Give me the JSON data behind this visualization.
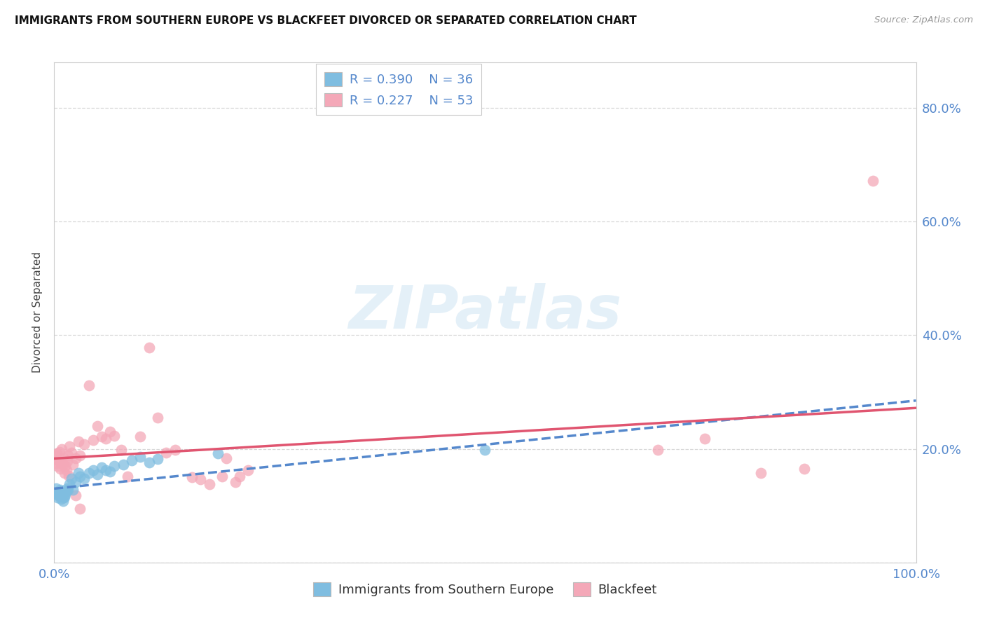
{
  "title": "IMMIGRANTS FROM SOUTHERN EUROPE VS BLACKFEET DIVORCED OR SEPARATED CORRELATION CHART",
  "source": "Source: ZipAtlas.com",
  "ylabel": "Divorced or Separated",
  "xlim": [
    0.0,
    1.0
  ],
  "ylim": [
    0.0,
    0.88
  ],
  "xtick_positions": [
    0.0,
    0.2,
    0.4,
    0.6,
    0.8,
    1.0
  ],
  "xticklabels": [
    "0.0%",
    "",
    "",
    "",
    "",
    "100.0%"
  ],
  "ytick_positions": [
    0.0,
    0.2,
    0.4,
    0.6,
    0.8
  ],
  "yticklabels": [
    "",
    "20.0%",
    "40.0%",
    "60.0%",
    "80.0%"
  ],
  "blue_R": "0.390",
  "blue_N": "36",
  "pink_R": "0.227",
  "pink_N": "53",
  "blue_scatter_color": "#7fbde0",
  "pink_scatter_color": "#f4a8b8",
  "blue_line_color": "#5588cc",
  "pink_line_color": "#e05570",
  "blue_trend_x": [
    0.0,
    1.0
  ],
  "blue_trend_y": [
    0.13,
    0.285
  ],
  "pink_trend_x": [
    0.0,
    1.0
  ],
  "pink_trend_y": [
    0.183,
    0.272
  ],
  "blue_scatter": [
    [
      0.002,
      0.13
    ],
    [
      0.003,
      0.12
    ],
    [
      0.004,
      0.115
    ],
    [
      0.005,
      0.118
    ],
    [
      0.006,
      0.122
    ],
    [
      0.007,
      0.128
    ],
    [
      0.008,
      0.112
    ],
    [
      0.009,
      0.118
    ],
    [
      0.01,
      0.108
    ],
    [
      0.011,
      0.114
    ],
    [
      0.012,
      0.116
    ],
    [
      0.013,
      0.12
    ],
    [
      0.014,
      0.125
    ],
    [
      0.015,
      0.13
    ],
    [
      0.016,
      0.128
    ],
    [
      0.018,
      0.138
    ],
    [
      0.02,
      0.148
    ],
    [
      0.022,
      0.128
    ],
    [
      0.025,
      0.142
    ],
    [
      0.028,
      0.158
    ],
    [
      0.03,
      0.152
    ],
    [
      0.035,
      0.148
    ],
    [
      0.04,
      0.158
    ],
    [
      0.045,
      0.162
    ],
    [
      0.05,
      0.155
    ],
    [
      0.055,
      0.168
    ],
    [
      0.06,
      0.162
    ],
    [
      0.065,
      0.16
    ],
    [
      0.07,
      0.17
    ],
    [
      0.08,
      0.172
    ],
    [
      0.09,
      0.18
    ],
    [
      0.1,
      0.186
    ],
    [
      0.11,
      0.176
    ],
    [
      0.12,
      0.182
    ],
    [
      0.19,
      0.192
    ],
    [
      0.5,
      0.198
    ]
  ],
  "pink_scatter": [
    [
      0.001,
      0.188
    ],
    [
      0.002,
      0.175
    ],
    [
      0.003,
      0.192
    ],
    [
      0.004,
      0.17
    ],
    [
      0.005,
      0.18
    ],
    [
      0.006,
      0.195
    ],
    [
      0.007,
      0.165
    ],
    [
      0.008,
      0.175
    ],
    [
      0.009,
      0.2
    ],
    [
      0.01,
      0.173
    ],
    [
      0.011,
      0.183
    ],
    [
      0.012,
      0.158
    ],
    [
      0.013,
      0.17
    ],
    [
      0.014,
      0.163
    ],
    [
      0.015,
      0.178
    ],
    [
      0.016,
      0.188
    ],
    [
      0.017,
      0.153
    ],
    [
      0.018,
      0.205
    ],
    [
      0.02,
      0.193
    ],
    [
      0.022,
      0.173
    ],
    [
      0.025,
      0.183
    ],
    [
      0.028,
      0.213
    ],
    [
      0.03,
      0.188
    ],
    [
      0.035,
      0.208
    ],
    [
      0.04,
      0.312
    ],
    [
      0.045,
      0.215
    ],
    [
      0.05,
      0.24
    ],
    [
      0.055,
      0.222
    ],
    [
      0.06,
      0.218
    ],
    [
      0.065,
      0.23
    ],
    [
      0.025,
      0.118
    ],
    [
      0.03,
      0.095
    ],
    [
      0.07,
      0.223
    ],
    [
      0.078,
      0.198
    ],
    [
      0.11,
      0.378
    ],
    [
      0.12,
      0.255
    ],
    [
      0.13,
      0.193
    ],
    [
      0.14,
      0.198
    ],
    [
      0.16,
      0.15
    ],
    [
      0.17,
      0.147
    ],
    [
      0.18,
      0.138
    ],
    [
      0.195,
      0.152
    ],
    [
      0.2,
      0.183
    ],
    [
      0.21,
      0.142
    ],
    [
      0.215,
      0.152
    ],
    [
      0.225,
      0.162
    ],
    [
      0.085,
      0.152
    ],
    [
      0.1,
      0.222
    ],
    [
      0.7,
      0.198
    ],
    [
      0.755,
      0.218
    ],
    [
      0.82,
      0.158
    ],
    [
      0.87,
      0.165
    ],
    [
      0.95,
      0.672
    ]
  ],
  "watermark": "ZIPatlas",
  "background_color": "#ffffff",
  "grid_color": "#d8d8d8",
  "tick_color": "#5588cc",
  "legend_text_color": "#333333",
  "legend_R_N_color": "#5588cc"
}
